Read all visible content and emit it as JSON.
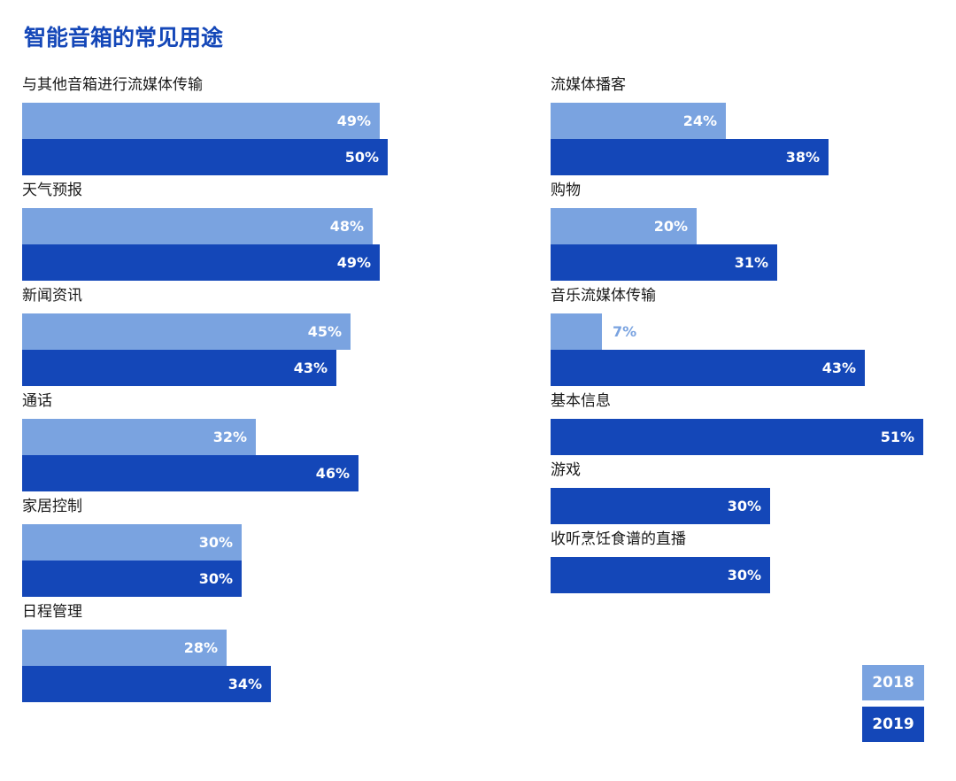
{
  "chart_data": {
    "type": "bar",
    "orientation": "horizontal",
    "title": "智能音箱的常见用途",
    "value_unit": "%",
    "legend_position": "bottom-right",
    "colors": {
      "2018": "#7aa3e0",
      "2019": "#1447b8",
      "title": "#1447b8",
      "text_2018_outside": "#7aa3e0"
    },
    "series": [
      {
        "name": "2018"
      },
      {
        "name": "2019"
      }
    ],
    "groups": [
      {
        "label": "与其他音箱进行流媒体传输",
        "column": "left",
        "values": {
          "2018": 49,
          "2019": 50
        }
      },
      {
        "label": "天气预报",
        "column": "left",
        "values": {
          "2018": 48,
          "2019": 49
        }
      },
      {
        "label": "新闻资讯",
        "column": "left",
        "values": {
          "2018": 45,
          "2019": 43
        }
      },
      {
        "label": "通话",
        "column": "left",
        "values": {
          "2018": 32,
          "2019": 46
        }
      },
      {
        "label": "家居控制",
        "column": "left",
        "values": {
          "2018": 30,
          "2019": 30
        }
      },
      {
        "label": "日程管理",
        "column": "left",
        "values": {
          "2018": 28,
          "2019": 34
        }
      },
      {
        "label": "流媒体播客",
        "column": "right",
        "values": {
          "2018": 24,
          "2019": 38
        }
      },
      {
        "label": "购物",
        "column": "right",
        "values": {
          "2018": 20,
          "2019": 31
        }
      },
      {
        "label": "音乐流媒体传输",
        "column": "right",
        "values": {
          "2018": 7,
          "2019": 43
        }
      },
      {
        "label": "基本信息",
        "column": "right",
        "values": {
          "2019": 51
        }
      },
      {
        "label": "游戏",
        "column": "right",
        "values": {
          "2019": 30
        }
      },
      {
        "label": "收听烹饪食谱的直播",
        "column": "right",
        "values": {
          "2019": 30
        }
      }
    ]
  }
}
